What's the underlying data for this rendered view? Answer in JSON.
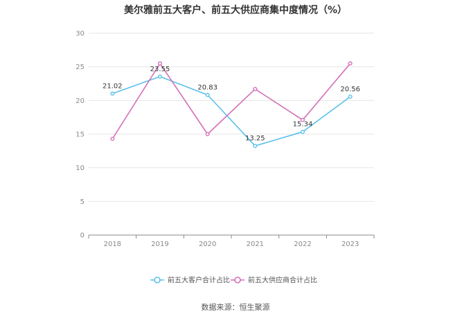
{
  "chart_data": {
    "type": "line",
    "title": "美尔雅前五大客户、前五大供应商集中度情况（%）",
    "categories": [
      "2018",
      "2019",
      "2020",
      "2021",
      "2022",
      "2023"
    ],
    "ylim": [
      0,
      30
    ],
    "yticks": [
      0,
      5,
      10,
      15,
      20,
      25,
      30
    ],
    "grid": true,
    "legend_position": "bottom",
    "series": [
      {
        "name": "前五大客户合计占比",
        "color": "#5bc0eb",
        "values": [
          21.02,
          23.55,
          20.83,
          13.25,
          15.34,
          20.56
        ],
        "show_labels": true
      },
      {
        "name": "前五大供应商合计占比",
        "color": "#d46fb8",
        "values": [
          14.3,
          25.5,
          15.0,
          21.7,
          17.1,
          25.5
        ],
        "show_labels": false
      }
    ]
  },
  "source": "数据来源：恒生聚源"
}
